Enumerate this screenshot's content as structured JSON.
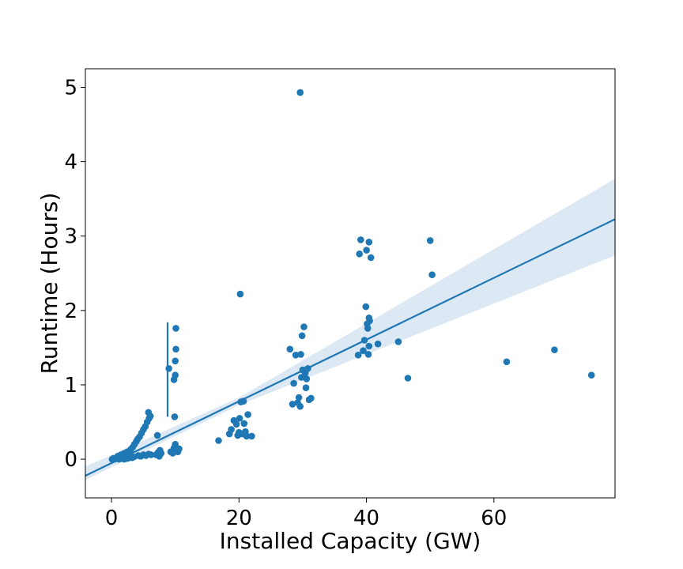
{
  "chart_data": {
    "type": "scatter",
    "title": "",
    "xlabel": "Installed Capacity (GW)",
    "ylabel": "Runtime (Hours)",
    "xlim": [
      -4.1,
      79
    ],
    "ylim": [
      -0.52,
      5.25
    ],
    "xticks": [
      0,
      20,
      40,
      60
    ],
    "yticks": [
      0,
      1,
      2,
      3,
      4,
      5
    ],
    "grid": false,
    "color": "#1f77b4",
    "band_color": "#dce8f3",
    "points": [
      [
        0.1,
        0.0
      ],
      [
        0.3,
        0.01
      ],
      [
        0.5,
        0.0
      ],
      [
        0.8,
        0.01
      ],
      [
        1.0,
        0.02
      ],
      [
        1.2,
        0.0
      ],
      [
        1.5,
        0.01
      ],
      [
        1.8,
        0.02
      ],
      [
        2.0,
        0.0
      ],
      [
        2.2,
        0.03
      ],
      [
        2.5,
        0.01
      ],
      [
        2.8,
        0.02
      ],
      [
        3.0,
        0.04
      ],
      [
        3.2,
        0.02
      ],
      [
        3.5,
        0.03
      ],
      [
        1.0,
        0.04
      ],
      [
        1.5,
        0.06
      ],
      [
        2.0,
        0.08
      ],
      [
        2.5,
        0.1
      ],
      [
        3.0,
        0.13
      ],
      [
        3.3,
        0.16
      ],
      [
        3.6,
        0.2
      ],
      [
        3.9,
        0.24
      ],
      [
        4.1,
        0.27
      ],
      [
        4.4,
        0.3
      ],
      [
        4.7,
        0.35
      ],
      [
        5.0,
        0.4
      ],
      [
        5.3,
        0.44
      ],
      [
        5.6,
        0.5
      ],
      [
        5.9,
        0.55
      ],
      [
        6.1,
        0.58
      ],
      [
        5.8,
        0.63
      ],
      [
        4.2,
        0.05
      ],
      [
        4.6,
        0.04
      ],
      [
        5.0,
        0.06
      ],
      [
        5.4,
        0.05
      ],
      [
        5.8,
        0.07
      ],
      [
        6.2,
        0.06
      ],
      [
        7.0,
        0.06
      ],
      [
        7.3,
        0.09
      ],
      [
        7.6,
        0.12
      ],
      [
        7.2,
        0.32
      ],
      [
        7.8,
        0.08
      ],
      [
        7.5,
        0.04
      ],
      [
        9.0,
        1.22
      ],
      [
        9.3,
        0.1
      ],
      [
        9.6,
        0.08
      ],
      [
        9.8,
        0.15
      ],
      [
        10.0,
        0.2
      ],
      [
        10.2,
        0.12
      ],
      [
        10.4,
        0.1
      ],
      [
        10.6,
        0.14
      ],
      [
        9.9,
        0.57
      ],
      [
        9.8,
        1.07
      ],
      [
        10.0,
        1.13
      ],
      [
        10.0,
        1.32
      ],
      [
        10.1,
        1.48
      ],
      [
        10.1,
        1.76
      ],
      [
        16.8,
        0.25
      ],
      [
        18.5,
        0.34
      ],
      [
        18.8,
        0.4
      ],
      [
        19.2,
        0.52
      ],
      [
        19.6,
        0.47
      ],
      [
        19.8,
        0.32
      ],
      [
        20.0,
        0.36
      ],
      [
        20.1,
        0.55
      ],
      [
        20.3,
        0.77
      ],
      [
        20.5,
        0.34
      ],
      [
        20.7,
        0.78
      ],
      [
        20.8,
        0.48
      ],
      [
        21.0,
        0.37
      ],
      [
        21.2,
        0.31
      ],
      [
        21.4,
        0.6
      ],
      [
        22.0,
        0.31
      ],
      [
        20.2,
        2.22
      ],
      [
        28.0,
        1.48
      ],
      [
        28.4,
        0.74
      ],
      [
        28.6,
        1.02
      ],
      [
        28.9,
        1.4
      ],
      [
        29.2,
        0.76
      ],
      [
        29.4,
        0.83
      ],
      [
        29.6,
        0.71
      ],
      [
        29.8,
        1.1
      ],
      [
        29.7,
        1.41
      ],
      [
        29.9,
        1.66
      ],
      [
        30.0,
        1.2
      ],
      [
        30.2,
        1.78
      ],
      [
        30.4,
        1.16
      ],
      [
        30.5,
        0.96
      ],
      [
        30.6,
        1.08
      ],
      [
        30.8,
        1.22
      ],
      [
        31.0,
        0.8
      ],
      [
        31.3,
        0.82
      ],
      [
        29.6,
        4.93
      ],
      [
        38.7,
        1.4
      ],
      [
        38.9,
        2.76
      ],
      [
        39.1,
        2.95
      ],
      [
        39.5,
        1.46
      ],
      [
        39.7,
        1.6
      ],
      [
        39.9,
        2.05
      ],
      [
        40.0,
        2.81
      ],
      [
        40.1,
        1.82
      ],
      [
        40.2,
        1.76
      ],
      [
        40.3,
        1.41
      ],
      [
        40.4,
        2.92
      ],
      [
        40.4,
        1.52
      ],
      [
        40.4,
        1.9
      ],
      [
        40.5,
        1.86
      ],
      [
        40.7,
        2.71
      ],
      [
        41.8,
        1.55
      ],
      [
        45.0,
        1.58
      ],
      [
        46.5,
        1.09
      ],
      [
        50.0,
        2.94
      ],
      [
        50.3,
        2.48
      ],
      [
        62.0,
        1.31
      ],
      [
        69.5,
        1.47
      ],
      [
        75.3,
        1.13
      ]
    ],
    "regression": {
      "slope": 0.0415,
      "intercept": -0.052,
      "ci_low_end": 2.74,
      "ci_high_end": 3.77,
      "ci_low_start": -0.28,
      "ci_high_start": -0.1
    },
    "error_bar": {
      "x": 8.8,
      "y_low": 0.57,
      "y_high": 1.84
    }
  }
}
